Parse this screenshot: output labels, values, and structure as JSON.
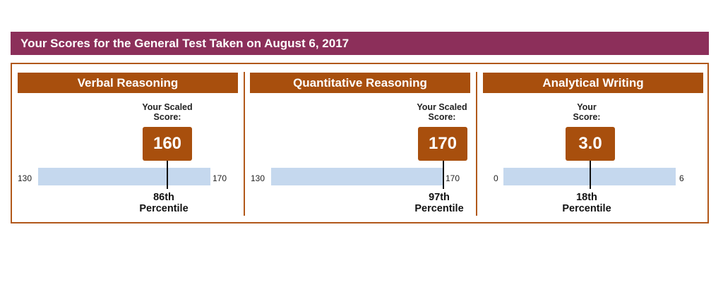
{
  "banner": {
    "title": "Your Scores for the General Test Taken on August 6, 2017"
  },
  "sections": [
    {
      "title": "Verbal Reasoning",
      "caption_line1": "Your Scaled",
      "caption_line2": "Score:",
      "score": "160",
      "min": "130",
      "max": "170",
      "percentile": "86th",
      "percentile_label": "Percentile",
      "score_fraction": 0.75
    },
    {
      "title": "Quantitative Reasoning",
      "caption_line1": "Your Scaled",
      "caption_line2": "Score:",
      "score": "170",
      "min": "130",
      "max": "170",
      "percentile": "97th",
      "percentile_label": "Percentile",
      "score_fraction": 1.0
    },
    {
      "title": "Analytical Writing",
      "caption_line1": "Your",
      "caption_line2": "Score:",
      "score": "3.0",
      "min": "0",
      "max": "6",
      "percentile": "18th",
      "percentile_label": "Percentile",
      "score_fraction": 0.5
    }
  ],
  "colors": {
    "banner": "#8c2f5a",
    "section_header": "#a84f0d",
    "bar": "#c5d8ee",
    "border": "#b1581a"
  }
}
